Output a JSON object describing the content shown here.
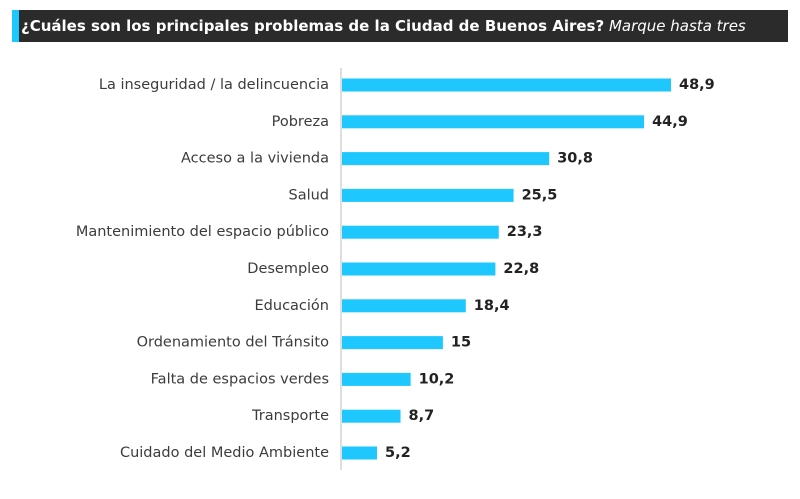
{
  "chart_data": {
    "type": "bar",
    "orientation": "horizontal",
    "title": "¿Cuáles son los principales problemas de la Ciudad de Buenos Aires?",
    "subtitle": "Marque hasta tres",
    "categories": [
      "La inseguridad / la delincuencia",
      "Pobreza",
      "Acceso a la vivienda",
      "Salud",
      "Mantenimiento del espacio público",
      "Desempleo",
      "Educación",
      "Ordenamiento del Tránsito",
      "Falta de espacios verdes",
      "Transporte",
      "Cuidado del Medio Ambiente"
    ],
    "values": [
      48.9,
      44.9,
      30.8,
      25.5,
      23.3,
      22.8,
      18.4,
      15,
      10.2,
      8.7,
      5.2
    ],
    "value_labels": [
      "48,9",
      "44,9",
      "30,8",
      "25,5",
      "23,3",
      "22,8",
      "18,4",
      "15",
      "10,2",
      "8,7",
      "5,2"
    ],
    "xlim": [
      0,
      50
    ],
    "xlabel": "",
    "ylabel": "",
    "grid": false,
    "legend": "none"
  },
  "colors": {
    "bar": "#1ec8ff",
    "header_bg": "#2b2b2b",
    "header_accent": "#1ec8ff",
    "axis": "#bdbdbd"
  }
}
